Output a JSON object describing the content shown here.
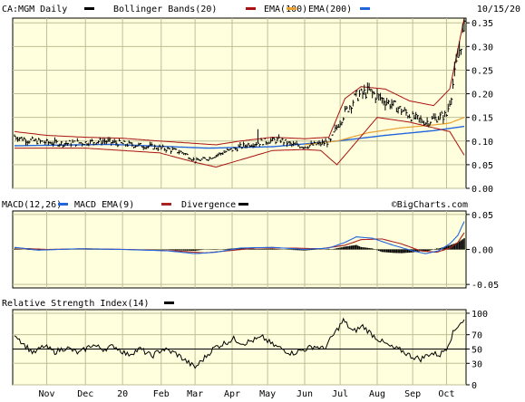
{
  "colors": {
    "background": "#ffffdd",
    "grid": "#bebe96",
    "price": "#000000",
    "bollinger": "#aa1111",
    "ema100": "#e8a030",
    "ema200": "#2266dd",
    "macd": "#2266dd",
    "macd_ema": "#aa2222",
    "divergence": "#000000",
    "rsi": "#000000"
  },
  "chart_data": [
    {
      "type": "line",
      "title": "CA:MGM Daily",
      "date_label": "10/15/20",
      "legend": [
        {
          "name": "CA:MGM Daily",
          "color": "#000000"
        },
        {
          "name": "Bollinger Bands(20)",
          "color": "#aa1111"
        },
        {
          "name": "EMA(100)",
          "color": "#e8a030"
        },
        {
          "name": "EMA(200)",
          "color": "#2266dd"
        }
      ],
      "ylim": [
        0,
        0.36
      ],
      "y_ticks": [
        "0.35",
        "0.30",
        "0.25",
        "0.20",
        "0.15",
        "0.10",
        "0.05",
        "0.00"
      ],
      "y_tick_values": [
        0.35,
        0.3,
        0.25,
        0.2,
        0.15,
        0.1,
        0.05,
        0.0
      ],
      "x_months": [
        "Nov",
        "Dec",
        "20",
        "Feb",
        "Mar",
        "Apr",
        "May",
        "Jun",
        "Jul",
        "Aug",
        "Sep",
        "Oct"
      ],
      "x_month_index": [
        20,
        44,
        67,
        91,
        112,
        135,
        157,
        180,
        202,
        225,
        247,
        268
      ],
      "n_days": 280,
      "price_anchors": [
        [
          0,
          0.11
        ],
        [
          8,
          0.102
        ],
        [
          20,
          0.097
        ],
        [
          30,
          0.095
        ],
        [
          44,
          0.097
        ],
        [
          55,
          0.1
        ],
        [
          67,
          0.094
        ],
        [
          80,
          0.09
        ],
        [
          95,
          0.083
        ],
        [
          105,
          0.075
        ],
        [
          112,
          0.058
        ],
        [
          120,
          0.063
        ],
        [
          128,
          0.074
        ],
        [
          135,
          0.082
        ],
        [
          145,
          0.093
        ],
        [
          157,
          0.1
        ],
        [
          165,
          0.102
        ],
        [
          172,
          0.092
        ],
        [
          180,
          0.089
        ],
        [
          190,
          0.094
        ],
        [
          196,
          0.1
        ],
        [
          200,
          0.13
        ],
        [
          205,
          0.16
        ],
        [
          212,
          0.195
        ],
        [
          220,
          0.205
        ],
        [
          230,
          0.185
        ],
        [
          238,
          0.17
        ],
        [
          247,
          0.15
        ],
        [
          255,
          0.14
        ],
        [
          263,
          0.15
        ],
        [
          268,
          0.155
        ],
        [
          271,
          0.2
        ],
        [
          274,
          0.26
        ],
        [
          277,
          0.31
        ],
        [
          279,
          0.335
        ]
      ],
      "ema100_anchors": [
        [
          180,
          0.092
        ],
        [
          200,
          0.1
        ],
        [
          220,
          0.118
        ],
        [
          240,
          0.128
        ],
        [
          260,
          0.134
        ],
        [
          270,
          0.138
        ],
        [
          279,
          0.15
        ]
      ],
      "ema200_anchors": [
        [
          0,
          0.09
        ],
        [
          60,
          0.093
        ],
        [
          120,
          0.085
        ],
        [
          160,
          0.088
        ],
        [
          200,
          0.1
        ],
        [
          230,
          0.112
        ],
        [
          260,
          0.122
        ],
        [
          279,
          0.131
        ]
      ],
      "bb_upper_anchors": [
        [
          0,
          0.12
        ],
        [
          20,
          0.112
        ],
        [
          44,
          0.108
        ],
        [
          67,
          0.106
        ],
        [
          90,
          0.1
        ],
        [
          112,
          0.095
        ],
        [
          125,
          0.092
        ],
        [
          140,
          0.1
        ],
        [
          160,
          0.108
        ],
        [
          180,
          0.105
        ],
        [
          195,
          0.108
        ],
        [
          205,
          0.19
        ],
        [
          215,
          0.215
        ],
        [
          230,
          0.21
        ],
        [
          245,
          0.185
        ],
        [
          260,
          0.175
        ],
        [
          270,
          0.21
        ],
        [
          279,
          0.36
        ]
      ],
      "bb_lower_anchors": [
        [
          0,
          0.085
        ],
        [
          20,
          0.085
        ],
        [
          44,
          0.085
        ],
        [
          67,
          0.08
        ],
        [
          90,
          0.075
        ],
        [
          112,
          0.055
        ],
        [
          125,
          0.045
        ],
        [
          140,
          0.06
        ],
        [
          160,
          0.08
        ],
        [
          180,
          0.082
        ],
        [
          190,
          0.08
        ],
        [
          200,
          0.05
        ],
        [
          210,
          0.09
        ],
        [
          225,
          0.15
        ],
        [
          245,
          0.14
        ],
        [
          260,
          0.128
        ],
        [
          270,
          0.12
        ],
        [
          279,
          0.07
        ]
      ],
      "spikes": [
        [
          151,
          0.125
        ]
      ]
    },
    {
      "type": "line",
      "title": "MACD(12,26)",
      "legend": [
        {
          "name": "MACD(12,26)",
          "color": "#2266dd"
        },
        {
          "name": "MACD EMA(9)",
          "color": "#aa2222"
        },
        {
          "name": "Divergence",
          "color": "#000000"
        }
      ],
      "watermark": "©BigCharts.com",
      "ylim": [
        -0.055,
        0.055
      ],
      "y_ticks": [
        "0.05",
        "0.00",
        "-0.05"
      ],
      "y_tick_values": [
        0.05,
        0.0,
        -0.05
      ],
      "macd_anchors": [
        [
          0,
          0.003
        ],
        [
          15,
          -0.001
        ],
        [
          40,
          0.001
        ],
        [
          67,
          0.0
        ],
        [
          95,
          -0.002
        ],
        [
          112,
          -0.006
        ],
        [
          125,
          -0.004
        ],
        [
          140,
          0.002
        ],
        [
          160,
          0.003
        ],
        [
          180,
          0.0
        ],
        [
          195,
          0.002
        ],
        [
          205,
          0.01
        ],
        [
          212,
          0.018
        ],
        [
          222,
          0.016
        ],
        [
          235,
          0.006
        ],
        [
          247,
          -0.002
        ],
        [
          255,
          -0.006
        ],
        [
          263,
          -0.002
        ],
        [
          270,
          0.008
        ],
        [
          275,
          0.02
        ],
        [
          279,
          0.04
        ]
      ],
      "signal_anchors": [
        [
          0,
          0.002
        ],
        [
          20,
          0.0
        ],
        [
          45,
          0.001
        ],
        [
          70,
          0.0
        ],
        [
          100,
          -0.002
        ],
        [
          118,
          -0.005
        ],
        [
          132,
          -0.002
        ],
        [
          150,
          0.002
        ],
        [
          170,
          0.002
        ],
        [
          190,
          0.001
        ],
        [
          205,
          0.006
        ],
        [
          215,
          0.014
        ],
        [
          228,
          0.015
        ],
        [
          240,
          0.008
        ],
        [
          252,
          -0.002
        ],
        [
          262,
          -0.004
        ],
        [
          270,
          0.002
        ],
        [
          275,
          0.01
        ],
        [
          279,
          0.024
        ]
      ]
    },
    {
      "type": "line",
      "title": "Relative Strength Index(14)",
      "legend": [
        {
          "name": "Relative Strength Index(14)",
          "color": "#000000"
        }
      ],
      "ylim": [
        0,
        105
      ],
      "y_ticks": [
        "100",
        "70",
        "50",
        "30",
        "0"
      ],
      "y_tick_values": [
        100,
        70,
        50,
        30,
        0
      ],
      "reference_line": 50,
      "rsi_anchors": [
        [
          0,
          72
        ],
        [
          6,
          56
        ],
        [
          12,
          44
        ],
        [
          18,
          54
        ],
        [
          25,
          46
        ],
        [
          32,
          52
        ],
        [
          40,
          44
        ],
        [
          48,
          56
        ],
        [
          55,
          50
        ],
        [
          62,
          54
        ],
        [
          70,
          42
        ],
        [
          78,
          50
        ],
        [
          85,
          40
        ],
        [
          92,
          50
        ],
        [
          100,
          44
        ],
        [
          106,
          34
        ],
        [
          112,
          24
        ],
        [
          118,
          38
        ],
        [
          124,
          52
        ],
        [
          130,
          58
        ],
        [
          136,
          64
        ],
        [
          142,
          58
        ],
        [
          148,
          62
        ],
        [
          154,
          66
        ],
        [
          160,
          56
        ],
        [
          166,
          50
        ],
        [
          172,
          44
        ],
        [
          178,
          48
        ],
        [
          186,
          54
        ],
        [
          192,
          50
        ],
        [
          198,
          70
        ],
        [
          204,
          90
        ],
        [
          210,
          74
        ],
        [
          216,
          82
        ],
        [
          222,
          70
        ],
        [
          228,
          60
        ],
        [
          234,
          52
        ],
        [
          240,
          48
        ],
        [
          246,
          40
        ],
        [
          252,
          36
        ],
        [
          258,
          44
        ],
        [
          264,
          42
        ],
        [
          268,
          52
        ],
        [
          272,
          72
        ],
        [
          276,
          86
        ],
        [
          279,
          90
        ]
      ]
    }
  ]
}
